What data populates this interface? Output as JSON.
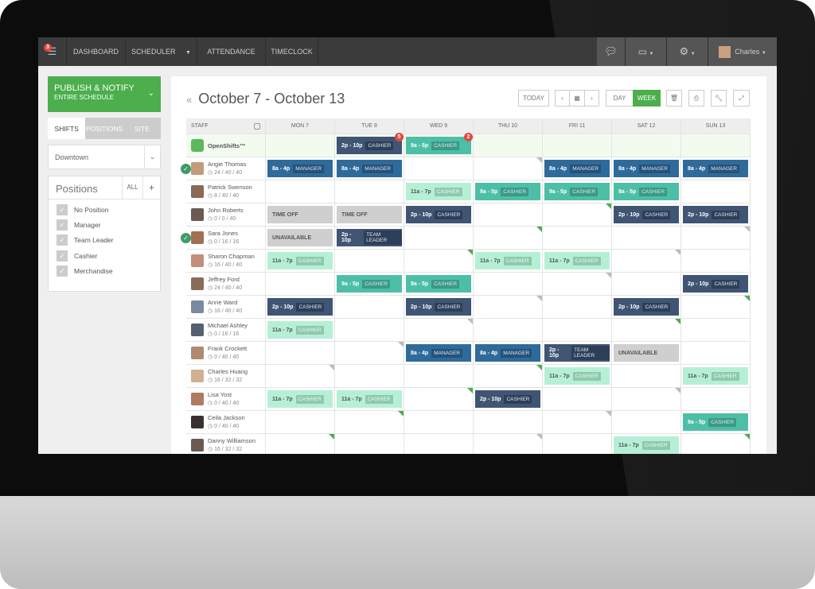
{
  "nav": {
    "notifications": "3",
    "items": [
      "DASHBOARD",
      "SCHEDULER",
      "ATTENDANCE",
      "TIMECLOCK"
    ],
    "user": "Charles"
  },
  "sidebar": {
    "publish": {
      "title": "PUBLISH & NOTIFY",
      "subtitle": "ENTIRE SCHEDULE"
    },
    "tabs": [
      "SHIFTS",
      "POSITIONS",
      "SITE"
    ],
    "location": "Downtown",
    "positions": {
      "title": "Positions",
      "all": "ALL",
      "add": "+",
      "items": [
        "No Position",
        "Manager",
        "Team Leader",
        "Cashier",
        "Merchandise"
      ]
    }
  },
  "header": {
    "back": "«",
    "title": "October 7 - October 13",
    "today": "TODAY",
    "day": "DAY",
    "week": "WEEK"
  },
  "colors": {
    "dark": "#3f5573",
    "blue": "#2f6b9a",
    "teal": "#4dbfa6",
    "light": "#b5f0d6",
    "gray": "#cfcfcf",
    "accent": "#4cae4c"
  },
  "grid": {
    "staff_label": "STAFF",
    "days": [
      "MON 7",
      "TUE 8",
      "WED 9",
      "THU 10",
      "FRI 11",
      "SAT 12",
      "SUN 13"
    ],
    "open": {
      "name": "OpenShifts™",
      "cells": [
        null,
        {
          "t": "2p - 10p",
          "p": "CASHIER",
          "c": "dark",
          "badge": "5"
        },
        {
          "t": "9a - 5p",
          "p": "CASHIER",
          "c": "teal",
          "badge": "2"
        },
        null,
        null,
        null,
        null
      ]
    },
    "rows": [
      {
        "name": "Angie Thomas",
        "hours": "24 / 40 / 40",
        "check": true,
        "cells": [
          {
            "t": "8a - 4p",
            "p": "MANAGER",
            "c": "blue"
          },
          {
            "t": "8a - 4p",
            "p": "MANAGER",
            "c": "blue"
          },
          null,
          null,
          {
            "t": "8a - 4p",
            "p": "MANAGER",
            "c": "blue"
          },
          {
            "t": "8a - 4p",
            "p": "MANAGER",
            "c": "blue"
          },
          {
            "t": "8a - 4p",
            "p": "MANAGER",
            "c": "blue"
          }
        ]
      },
      {
        "name": "Patrick Swenson",
        "hours": "8 / 40 / 40",
        "cells": [
          null,
          null,
          {
            "t": "11a - 7p",
            "p": "CASHIER",
            "c": "light"
          },
          {
            "t": "9a - 5p",
            "p": "CASHIER",
            "c": "teal"
          },
          {
            "t": "9a - 5p",
            "p": "CASHIER",
            "c": "teal"
          },
          {
            "t": "9a - 5p",
            "p": "CASHIER",
            "c": "teal"
          },
          null
        ]
      },
      {
        "name": "John Roberts",
        "hours": "0 / 0 / 40",
        "cells": [
          {
            "t": "TIME OFF",
            "c": "gray"
          },
          {
            "t": "TIME OFF",
            "c": "gray"
          },
          {
            "t": "2p - 10p",
            "p": "CASHIER",
            "c": "dark"
          },
          null,
          null,
          {
            "t": "2p - 10p",
            "p": "CASHIER",
            "c": "dark"
          },
          {
            "t": "2p - 10p",
            "p": "CASHIER",
            "c": "dark"
          }
        ]
      },
      {
        "name": "Sara Jones",
        "hours": "0 / 16 / 16",
        "check": true,
        "cells": [
          {
            "t": "UNAVAILABLE",
            "c": "gray"
          },
          {
            "t": "2p - 10p",
            "p": "TEAM LEADER",
            "c": "dark"
          },
          null,
          null,
          null,
          null,
          null
        ]
      },
      {
        "name": "Sharon Chapman",
        "hours": "16 / 40 / 40",
        "cells": [
          {
            "t": "11a - 7p",
            "p": "CASHIER",
            "c": "light"
          },
          null,
          null,
          {
            "t": "11a - 7p",
            "p": "CASHIER",
            "c": "light"
          },
          {
            "t": "11a - 7p",
            "p": "CASHIER",
            "c": "light"
          },
          null,
          null
        ]
      },
      {
        "name": "Jeffrey Ford",
        "hours": "24 / 40 / 40",
        "cells": [
          null,
          {
            "t": "9a - 5p",
            "p": "CASHIER",
            "c": "teal"
          },
          {
            "t": "9a - 5p",
            "p": "CASHIER",
            "c": "teal"
          },
          null,
          null,
          null,
          {
            "t": "2p - 10p",
            "p": "CASHIER",
            "c": "dark"
          }
        ]
      },
      {
        "name": "Anne Ward",
        "hours": "16 / 40 / 40",
        "cells": [
          {
            "t": "2p - 10p",
            "p": "CASHIER",
            "c": "dark"
          },
          null,
          {
            "t": "2p - 10p",
            "p": "CASHIER",
            "c": "dark"
          },
          null,
          null,
          {
            "t": "2p - 10p",
            "p": "CASHIER",
            "c": "dark"
          },
          null
        ]
      },
      {
        "name": "Michael Ashley",
        "hours": "0 / 16 / 16",
        "cells": [
          {
            "t": "11a - 7p",
            "p": "CASHIER",
            "c": "light"
          },
          null,
          null,
          null,
          null,
          null,
          null
        ]
      },
      {
        "name": "Frank Crockett",
        "hours": "0 / 40 / 40",
        "cells": [
          null,
          null,
          {
            "t": "8a - 4p",
            "p": "MANAGER",
            "c": "blue"
          },
          {
            "t": "8a - 4p",
            "p": "MANAGER",
            "c": "blue"
          },
          {
            "t": "2p - 10p",
            "p": "TEAM LEADER",
            "c": "dark"
          },
          {
            "t": "UNAVAILABLE",
            "c": "gray"
          },
          null
        ]
      },
      {
        "name": "Charles Huang",
        "hours": "16 / 32 / 32",
        "cells": [
          null,
          null,
          null,
          null,
          {
            "t": "11a - 7p",
            "p": "CASHIER",
            "c": "light"
          },
          null,
          {
            "t": "11a - 7p",
            "p": "CASHIER",
            "c": "light"
          }
        ]
      },
      {
        "name": "Lisa Yost",
        "hours": "0 / 40 / 40",
        "cells": [
          {
            "t": "11a - 7p",
            "p": "CASHIER",
            "c": "light"
          },
          {
            "t": "11a - 7p",
            "p": "CASHIER",
            "c": "light"
          },
          null,
          {
            "t": "2p - 10p",
            "p": "CASHIER",
            "c": "dark"
          },
          null,
          null,
          null
        ]
      },
      {
        "name": "Ceila Jackson",
        "hours": "0 / 40 / 40",
        "cells": [
          null,
          null,
          null,
          null,
          null,
          null,
          {
            "t": "9a - 5p",
            "p": "CASHIER",
            "c": "teal"
          }
        ]
      },
      {
        "name": "Danny  Williamson",
        "hours": "16 / 32 / 32",
        "cells": [
          null,
          null,
          null,
          null,
          null,
          {
            "t": "11a - 7p",
            "p": "CASHIER",
            "c": "light"
          },
          null
        ]
      }
    ]
  }
}
